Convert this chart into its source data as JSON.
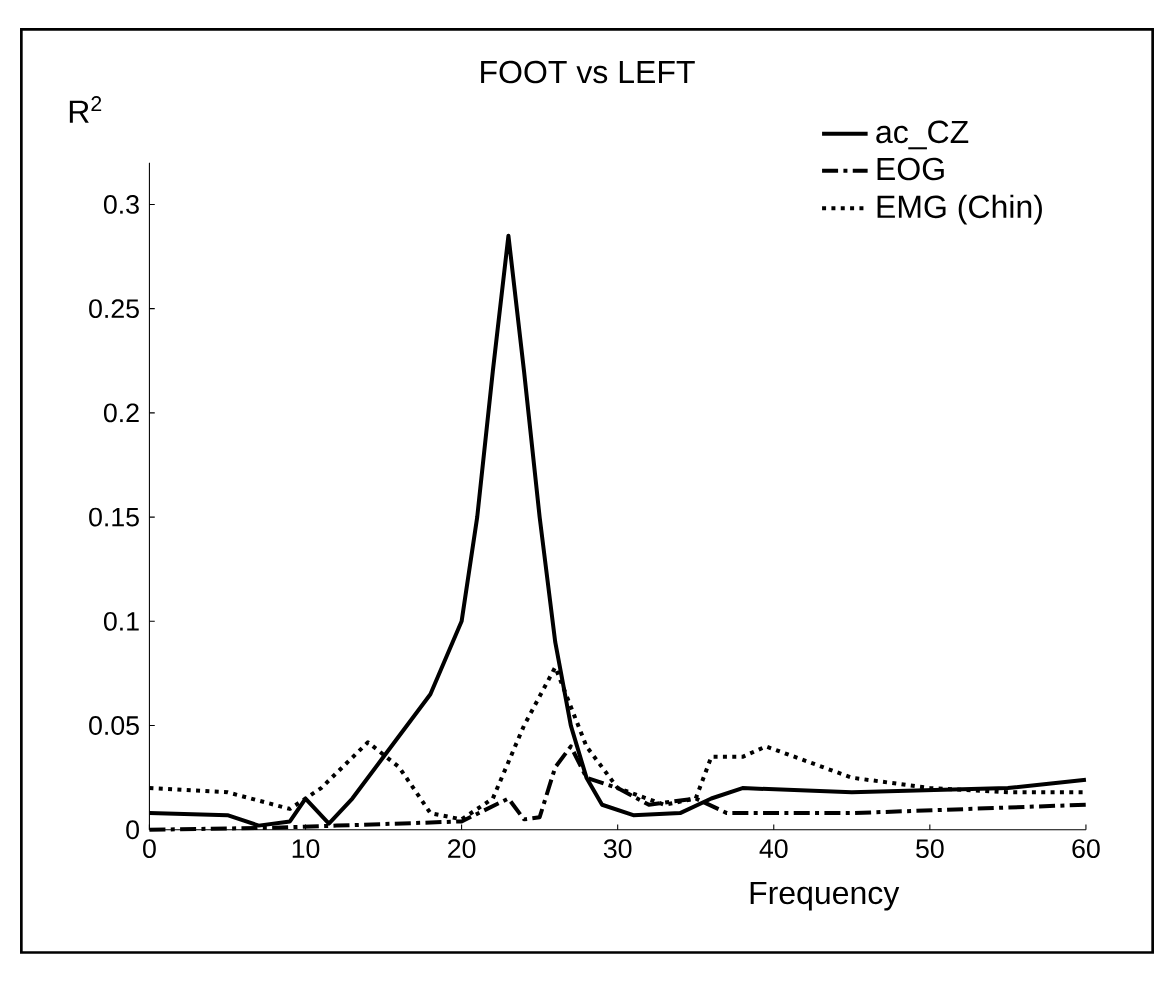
{
  "chart_data": {
    "type": "line",
    "title": "FOOT vs LEFT",
    "xlabel": "Frequency",
    "ylabel": "R$^{2}$",
    "xlim": [
      0,
      60
    ],
    "ylim": [
      0,
      0.32
    ],
    "xticks": [
      0,
      10,
      20,
      30,
      40,
      50,
      60
    ],
    "yticks": [
      0,
      0.05,
      0.1,
      0.15,
      0.2,
      0.25,
      0.3
    ],
    "legend": "top right",
    "grid": false,
    "marker": "none",
    "series": [
      {
        "name": "ac_CZ",
        "color": "#000000",
        "line_style": "solid",
        "x": [
          0,
          5,
          7,
          9,
          10,
          11.5,
          13,
          15,
          18,
          20,
          21,
          22,
          23,
          24,
          25,
          26,
          27,
          28,
          29,
          31,
          34,
          36,
          38,
          45,
          55,
          60
        ],
        "values": [
          0.008,
          0.007,
          0.002,
          0.004,
          0.015,
          0.003,
          0.015,
          0.035,
          0.065,
          0.1,
          0.15,
          0.22,
          0.285,
          0.22,
          0.15,
          0.09,
          0.05,
          0.025,
          0.012,
          0.007,
          0.008,
          0.015,
          0.02,
          0.018,
          0.02,
          0.024
        ]
      },
      {
        "name": "EOG",
        "color": "#000000",
        "line_style": "dashdot",
        "x": [
          0,
          8,
          12,
          20,
          23,
          24,
          25,
          26,
          27,
          28,
          30,
          32,
          35,
          37,
          45,
          60
        ],
        "values": [
          0,
          0.001,
          0.002,
          0.004,
          0.015,
          0.005,
          0.006,
          0.03,
          0.04,
          0.025,
          0.02,
          0.012,
          0.015,
          0.008,
          0.008,
          0.012
        ]
      },
      {
        "name": "EMG (Chin)",
        "color": "#000000",
        "line_style": "dotted",
        "x": [
          0,
          5,
          9,
          11,
          14,
          16,
          18,
          20,
          22,
          24,
          26,
          28,
          30,
          33,
          35,
          36,
          38,
          39.5,
          45,
          50,
          55,
          60
        ],
        "values": [
          0.02,
          0.018,
          0.01,
          0.02,
          0.042,
          0.03,
          0.008,
          0.005,
          0.015,
          0.05,
          0.078,
          0.04,
          0.02,
          0.012,
          0.015,
          0.035,
          0.035,
          0.04,
          0.025,
          0.02,
          0.018,
          0.018
        ]
      }
    ]
  }
}
